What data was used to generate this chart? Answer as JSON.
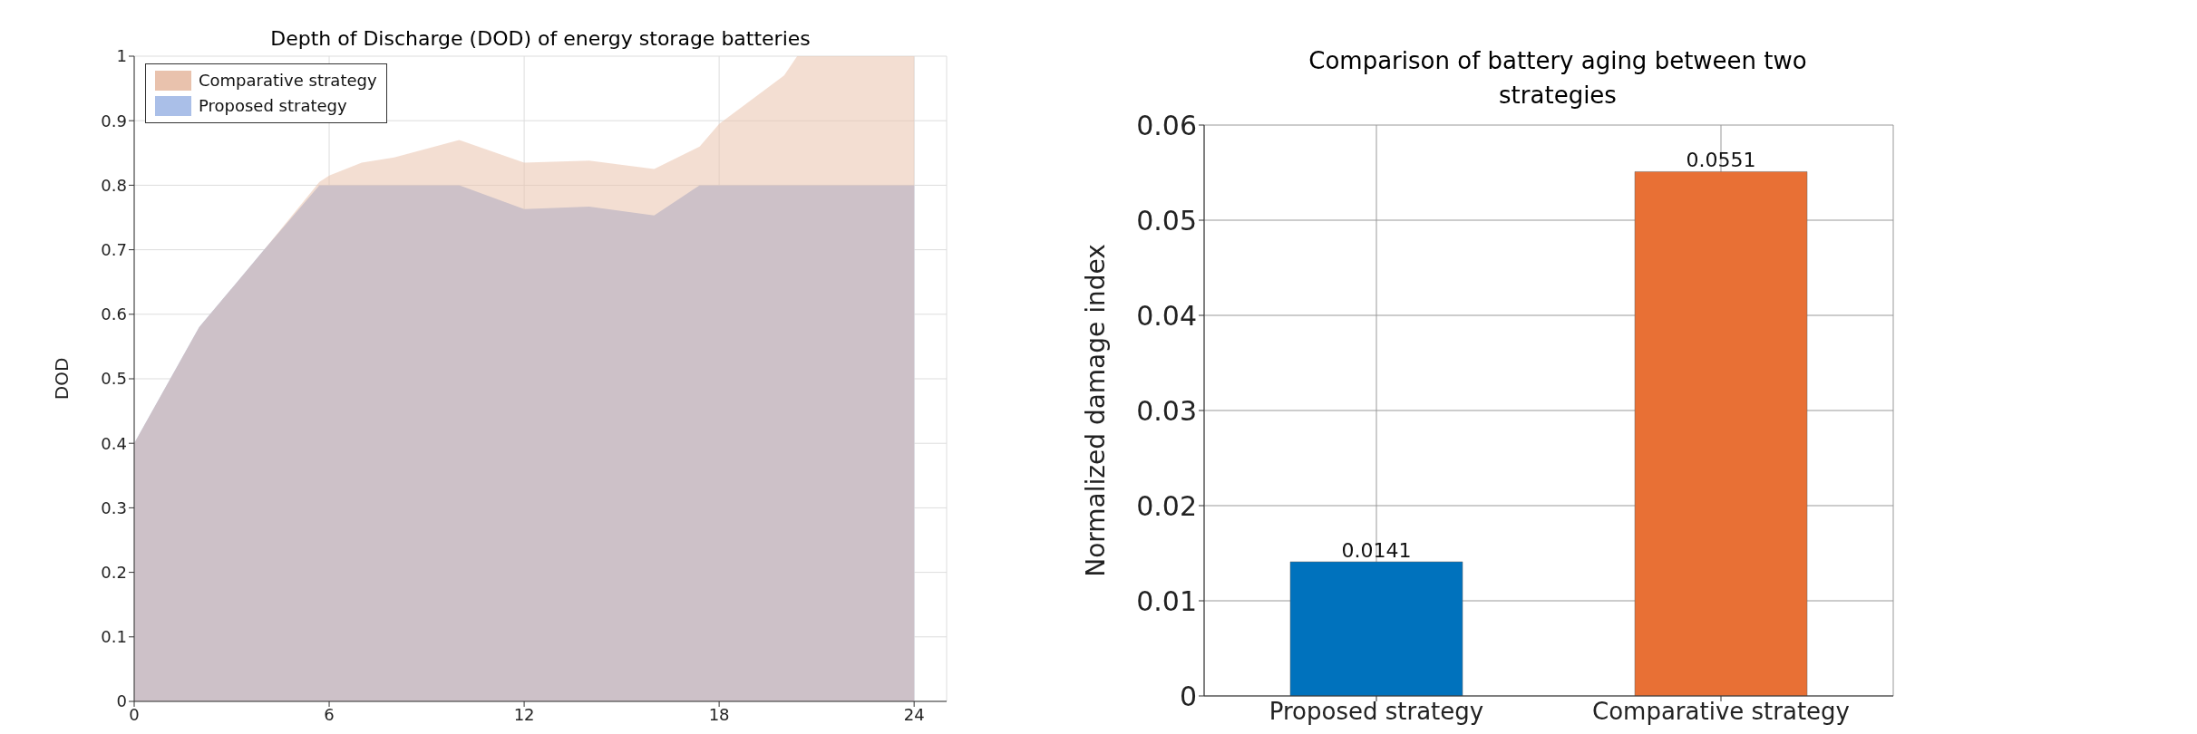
{
  "chart_data": [
    {
      "type": "area",
      "title": "Depth of Discharge (DOD) of energy storage batteries",
      "ylabel": "DOD",
      "x": [
        0,
        2,
        4,
        5.7,
        6,
        7,
        8,
        10,
        12,
        14,
        16,
        17.4,
        18,
        20,
        20.4,
        24
      ],
      "series": [
        {
          "name": "Comparative strategy",
          "color": "#e9c2ad",
          "values": [
            0.4,
            0.58,
            0.7,
            0.805,
            0.815,
            0.835,
            0.843,
            0.87,
            0.835,
            0.838,
            0.825,
            0.86,
            0.895,
            0.97,
            1.0,
            1.0
          ]
        },
        {
          "name": "Proposed strategy",
          "color": "#aabfe8",
          "values": [
            0.4,
            0.58,
            0.7,
            0.8,
            0.8,
            0.8,
            0.8,
            0.8,
            0.763,
            0.767,
            0.753,
            0.8,
            0.8,
            0.8,
            0.8,
            0.8
          ]
        }
      ],
      "xlim": [
        0,
        25
      ],
      "xticks": [
        0,
        6,
        12,
        18,
        24
      ],
      "ylim": [
        0,
        1
      ],
      "yticks": [
        0,
        0.1,
        0.2,
        0.3,
        0.4,
        0.5,
        0.6,
        0.7,
        0.8,
        0.9,
        1
      ],
      "grid": true,
      "legend": "top left"
    },
    {
      "type": "bar",
      "title": "Comparison of battery aging between two strategies",
      "ylabel": "Normalized damage index",
      "categories": [
        "Proposed strategy",
        "Comparative strategy"
      ],
      "values": [
        0.0141,
        0.0551
      ],
      "colors": [
        "#0072bd",
        "#e87035"
      ],
      "ylim": [
        0,
        0.06
      ],
      "yticks": [
        0,
        0.01,
        0.02,
        0.03,
        0.04,
        0.05,
        0.06
      ],
      "grid": true,
      "data_labels": true
    }
  ]
}
